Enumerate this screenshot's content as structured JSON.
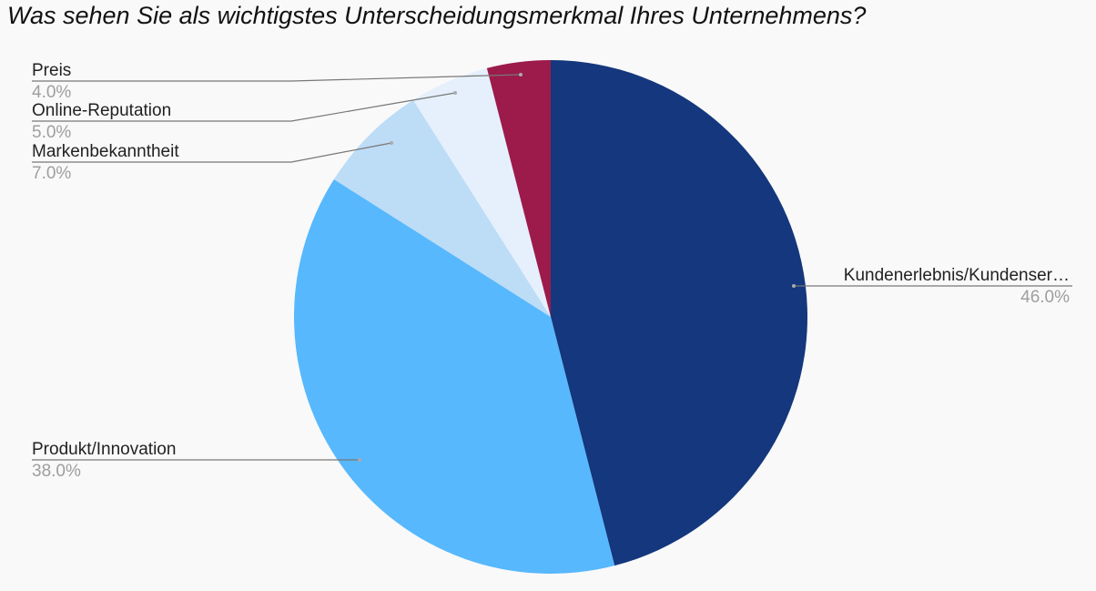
{
  "chart_data": {
    "type": "pie",
    "title": "Was sehen Sie als wichtigstes Unterscheidungsmerkmal Ihres Unternehmens?",
    "slices": [
      {
        "label": "Kundenerlebnis/Kundenser…",
        "value": 46.0,
        "pct_label": "46.0%",
        "color": "#14377d"
      },
      {
        "label": "Produkt/Innovation",
        "value": 38.0,
        "pct_label": "38.0%",
        "color": "#57b8fd"
      },
      {
        "label": "Markenbekanntheit",
        "value": 7.0,
        "pct_label": "7.0%",
        "color": "#bddcf6"
      },
      {
        "label": "Online-Reputation",
        "value": 5.0,
        "pct_label": "5.0%",
        "color": "#e5f0fc"
      },
      {
        "label": "Preis",
        "value": 4.0,
        "pct_label": "4.0%",
        "color": "#9c1b4a"
      }
    ],
    "start_angle": "top, clockwise",
    "legend": "none (leader-line labels)"
  }
}
